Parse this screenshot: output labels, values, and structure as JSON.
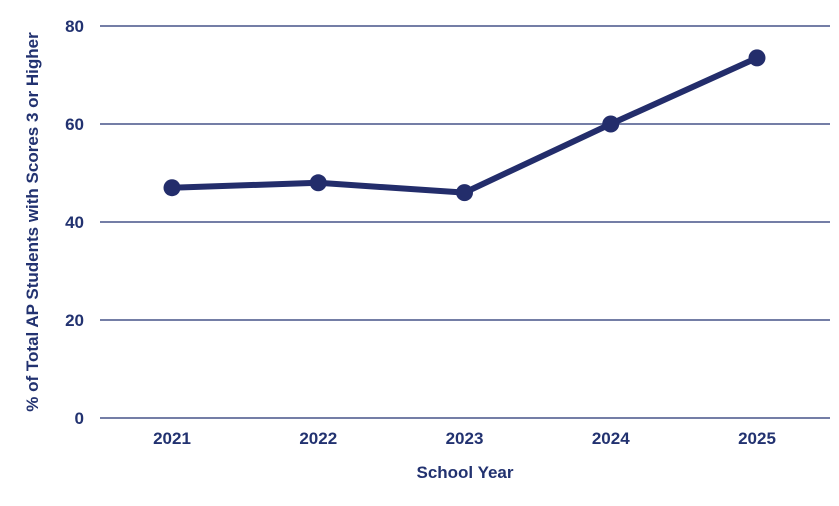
{
  "colors": {
    "line": "#232d6b",
    "grid": "#223270",
    "text": "#223270",
    "background": "#ffffff"
  },
  "chart_data": {
    "type": "line",
    "title": "",
    "xlabel": "School Year",
    "ylabel": "% of Total AP Students with Scores 3 or Higher",
    "categories": [
      "2021",
      "2022",
      "2023",
      "2024",
      "2025"
    ],
    "series": [
      {
        "values": [
          47,
          48,
          46,
          60,
          73.5
        ]
      }
    ],
    "ylim": [
      0,
      80
    ],
    "yticks": [
      "0",
      "20",
      "40",
      "60",
      "80"
    ],
    "grid": "horizontal",
    "legend": "none"
  }
}
